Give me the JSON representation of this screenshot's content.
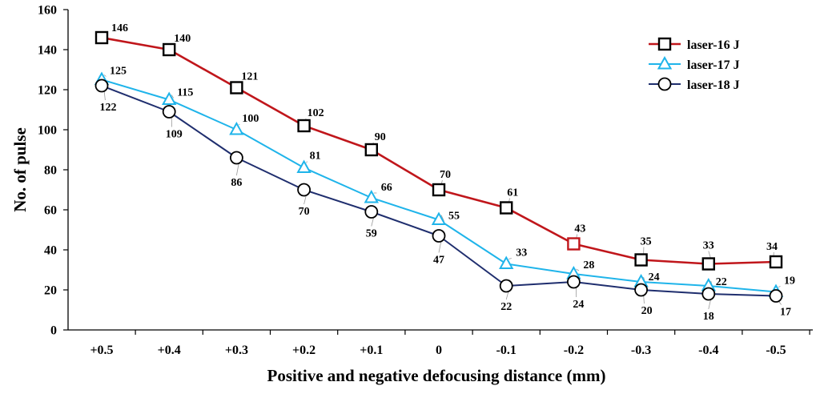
{
  "chart_data": {
    "type": "line",
    "title": "",
    "xlabel": "Positive and negative defocusing distance (mm)",
    "ylabel": "No. of  pulse",
    "ylim": [
      0,
      160
    ],
    "yticks": [
      "0",
      "20",
      "40",
      "60",
      "80",
      "100",
      "120",
      "140",
      "160"
    ],
    "categories": [
      "+0.5",
      "+0.4",
      "+0.3",
      "+0.2",
      "+0.1",
      "0",
      "-0.1",
      "-0.2",
      "-0.3",
      "-0.4",
      "-0.5"
    ],
    "grid": false,
    "legend_position": "top-right",
    "series": [
      {
        "name": "laser-16 J",
        "values": [
          146,
          140,
          121,
          102,
          90,
          70,
          61,
          43,
          35,
          33,
          34
        ],
        "line_color": "#c0161b",
        "marker": "square",
        "marker_color": "#000000",
        "highlight_index": 7,
        "highlight_color": "#c0161b",
        "labels": [
          "146",
          "140",
          "121",
          "102",
          "90",
          "70",
          "61",
          "43",
          "35",
          "33",
          "34"
        ]
      },
      {
        "name": "laser-17 J",
        "values": [
          125,
          115,
          100,
          81,
          66,
          55,
          33,
          28,
          24,
          22,
          19
        ],
        "line_color": "#1fb4ea",
        "marker": "triangle",
        "marker_color": "#1fb4ea",
        "labels": [
          "125",
          "115",
          "100",
          "81",
          "66",
          "55",
          "33",
          "28",
          "24",
          "22",
          "19"
        ]
      },
      {
        "name": "laser-18 J",
        "values": [
          122,
          109,
          86,
          70,
          59,
          47,
          22,
          24,
          20,
          18,
          17
        ],
        "line_color": "#1f2e6e",
        "marker": "circle",
        "marker_color": "#000000",
        "labels": [
          "122",
          "109",
          "86",
          "70",
          "59",
          "47",
          "22",
          "24",
          "20",
          "18",
          "17"
        ]
      }
    ]
  }
}
